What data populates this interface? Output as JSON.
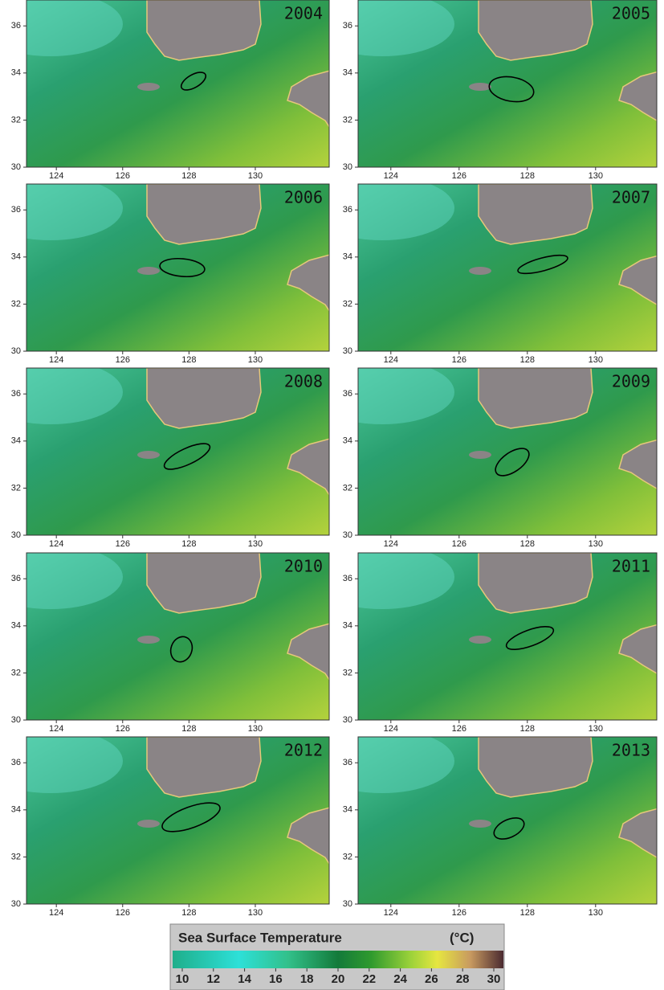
{
  "panels": [
    {
      "year": "2004"
    },
    {
      "year": "2005"
    },
    {
      "year": "2006"
    },
    {
      "year": "2007"
    },
    {
      "year": "2008"
    },
    {
      "year": "2009"
    },
    {
      "year": "2010"
    },
    {
      "year": "2011"
    },
    {
      "year": "2012"
    },
    {
      "year": "2013"
    }
  ],
  "xticks": [
    124,
    126,
    128,
    130
  ],
  "yticks": [
    30,
    32,
    34,
    36
  ],
  "colorbar": {
    "title": "Sea Surface Temperature",
    "unit": "(°C)",
    "ticks": [
      10,
      12,
      14,
      16,
      18,
      20,
      22,
      24,
      26,
      28,
      30
    ]
  }
}
